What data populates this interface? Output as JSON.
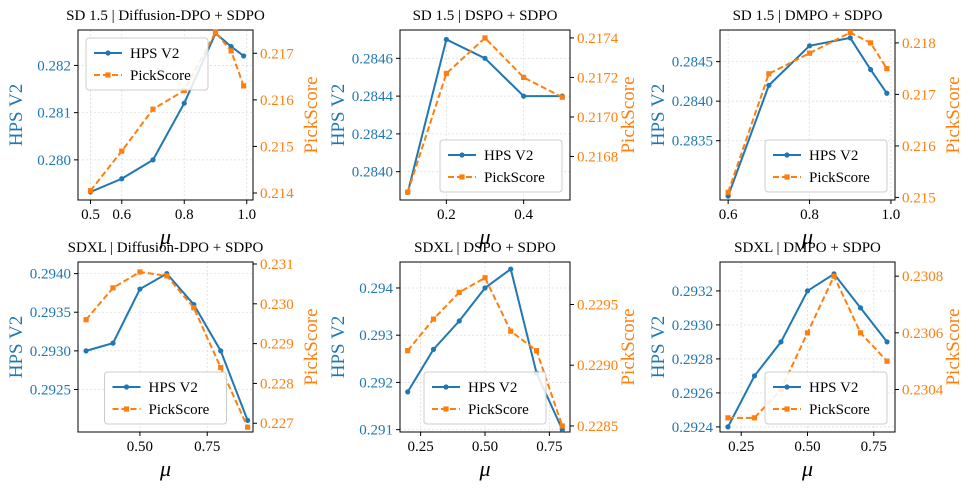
{
  "colors": {
    "hps": "#1f77b4",
    "pick": "#ff7f0e",
    "axis": "#000000",
    "grid": "#dddddd"
  },
  "chart_data": [
    {
      "type": "line",
      "title": "SD 1.5 | Diffusion-DPO + SDPO",
      "xlabel": "μ",
      "ylabel_left": "HPS V2",
      "ylabel_right": "PickScore",
      "xlim": [
        0.46,
        1.02
      ],
      "ylim_left": [
        0.27915,
        0.28275
      ],
      "ylim_right": [
        0.21385,
        0.2175
      ],
      "xticks": [
        0.5,
        0.6,
        0.8,
        1.0
      ],
      "xtick_labels": [
        "0.5",
        "0.6",
        "0.8",
        "1.0"
      ],
      "yticks_left": [
        0.28,
        0.281,
        0.282
      ],
      "yticks_left_labels": [
        "0.280",
        "0.281",
        "0.282"
      ],
      "yticks_right": [
        0.214,
        0.215,
        0.216,
        0.217
      ],
      "yticks_right_labels": [
        "0.214",
        "0.215",
        "0.216",
        "0.217"
      ],
      "legend_location": "top-left",
      "series": [
        {
          "name": "HPS V2",
          "axis": "left",
          "marker": "circle",
          "style": "solid",
          "x": [
            0.5,
            0.6,
            0.7,
            0.8,
            0.9,
            0.95,
            0.99
          ],
          "values": [
            0.27932,
            0.2796,
            0.28,
            0.2812,
            0.28268,
            0.2824,
            0.2822
          ]
        },
        {
          "name": "PickScore",
          "axis": "right",
          "marker": "square",
          "style": "dashed",
          "x": [
            0.5,
            0.6,
            0.7,
            0.8,
            0.9,
            0.95,
            0.99
          ],
          "values": [
            0.21405,
            0.2149,
            0.2158,
            0.2162,
            0.21745,
            0.21705,
            0.2163
          ]
        }
      ]
    },
    {
      "type": "line",
      "title": "SD 1.5 | DSPO + SDPO",
      "xlabel": "μ",
      "ylabel_left": "HPS V2",
      "ylabel_right": "PickScore",
      "xlim": [
        0.08,
        0.52
      ],
      "ylim_left": [
        0.28385,
        0.28475
      ],
      "ylim_right": [
        0.21658,
        0.21744
      ],
      "xticks": [
        0.2,
        0.4
      ],
      "xtick_labels": [
        "0.2",
        "0.4"
      ],
      "yticks_left": [
        0.284,
        0.2842,
        0.2844,
        0.2846
      ],
      "yticks_left_labels": [
        "0.2840",
        "0.2842",
        "0.2844",
        "0.2846"
      ],
      "yticks_right": [
        0.2168,
        0.217,
        0.2172,
        0.2174
      ],
      "yticks_right_labels": [
        "0.2168",
        "0.2170",
        "0.2172",
        "0.2174"
      ],
      "legend_location": "bottom-right",
      "series": [
        {
          "name": "HPS V2",
          "axis": "left",
          "marker": "circle",
          "style": "solid",
          "x": [
            0.1,
            0.2,
            0.3,
            0.4,
            0.5
          ],
          "values": [
            0.28389,
            0.2847,
            0.2846,
            0.2844,
            0.2844
          ]
        },
        {
          "name": "PickScore",
          "axis": "right",
          "marker": "square",
          "style": "dashed",
          "x": [
            0.1,
            0.2,
            0.3,
            0.4,
            0.5
          ],
          "values": [
            0.21662,
            0.21722,
            0.2174,
            0.2172,
            0.2171
          ]
        }
      ]
    },
    {
      "type": "line",
      "title": "SD 1.5 | DMPO + SDPO",
      "xlabel": "μ",
      "ylabel_left": "HPS V2",
      "ylabel_right": "PickScore",
      "xlim": [
        0.58,
        1.01
      ],
      "ylim_left": [
        0.28275,
        0.2849
      ],
      "ylim_right": [
        0.21495,
        0.21825
      ],
      "xticks": [
        0.6,
        0.8,
        1.0
      ],
      "xtick_labels": [
        "0.6",
        "0.8",
        "1.0"
      ],
      "yticks_left": [
        0.2835,
        0.284,
        0.2845
      ],
      "yticks_left_labels": [
        "0.2835",
        "0.2840",
        "0.2845"
      ],
      "yticks_right": [
        0.215,
        0.216,
        0.217,
        0.218
      ],
      "yticks_right_labels": [
        "0.215",
        "0.216",
        "0.217",
        "0.218"
      ],
      "legend_location": "bottom-right",
      "series": [
        {
          "name": "HPS V2",
          "axis": "left",
          "marker": "circle",
          "style": "solid",
          "x": [
            0.6,
            0.7,
            0.8,
            0.9,
            0.95,
            0.99
          ],
          "values": [
            0.2828,
            0.2842,
            0.2847,
            0.2848,
            0.2844,
            0.2841
          ]
        },
        {
          "name": "PickScore",
          "axis": "right",
          "marker": "square",
          "style": "dashed",
          "x": [
            0.6,
            0.7,
            0.8,
            0.9,
            0.95,
            0.99
          ],
          "values": [
            0.2151,
            0.2174,
            0.2178,
            0.2182,
            0.218,
            0.2175
          ]
        }
      ]
    },
    {
      "type": "line",
      "title": "SDXL  | Diffusion-DPO + SDPO",
      "xlabel": "μ",
      "ylabel_left": "HPS V2",
      "ylabel_right": "PickScore",
      "xlim": [
        0.27,
        0.92
      ],
      "ylim_left": [
        0.29195,
        0.29415
      ],
      "ylim_right": [
        0.22678,
        0.23105
      ],
      "xticks": [
        0.5,
        0.75
      ],
      "xtick_labels": [
        "0.50",
        "0.75"
      ],
      "yticks_left": [
        0.2925,
        0.293,
        0.2935,
        0.294
      ],
      "yticks_left_labels": [
        "0.2925",
        "0.2930",
        "0.2935",
        "0.2940"
      ],
      "yticks_right": [
        0.227,
        0.228,
        0.229,
        0.23,
        0.231
      ],
      "yticks_right_labels": [
        "0.227",
        "0.228",
        "0.229",
        "0.230",
        "0.231"
      ],
      "legend_location": "bottom-center",
      "series": [
        {
          "name": "HPS V2",
          "axis": "left",
          "marker": "circle",
          "style": "solid",
          "x": [
            0.3,
            0.4,
            0.5,
            0.6,
            0.7,
            0.8,
            0.9
          ],
          "values": [
            0.293,
            0.2931,
            0.2938,
            0.294,
            0.2936,
            0.293,
            0.2921
          ]
        },
        {
          "name": "PickScore",
          "axis": "right",
          "marker": "square",
          "style": "dashed",
          "x": [
            0.3,
            0.4,
            0.5,
            0.6,
            0.7,
            0.8,
            0.9
          ],
          "values": [
            0.2296,
            0.2304,
            0.2308,
            0.2307,
            0.2299,
            0.2284,
            0.2269
          ]
        }
      ]
    },
    {
      "type": "line",
      "title": "SDXL  | DSPO + SDPO",
      "xlabel": "μ",
      "ylabel_left": "HPS V2",
      "ylabel_right": "PickScore",
      "xlim": [
        0.17,
        0.83
      ],
      "ylim_left": [
        0.29095,
        0.29455
      ],
      "ylim_right": [
        0.22845,
        0.22985
      ],
      "xticks": [
        0.25,
        0.5,
        0.75
      ],
      "xtick_labels": [
        "0.25",
        "0.50",
        "0.75"
      ],
      "yticks_left": [
        0.291,
        0.292,
        0.293,
        0.294
      ],
      "yticks_left_labels": [
        "0.291",
        "0.292",
        "0.293",
        "0.294"
      ],
      "yticks_right": [
        0.2285,
        0.229,
        0.2295
      ],
      "yticks_right_labels": [
        "0.2285",
        "0.2290",
        "0.2295"
      ],
      "legend_location": "bottom-center",
      "series": [
        {
          "name": "HPS V2",
          "axis": "left",
          "marker": "circle",
          "style": "solid",
          "x": [
            0.2,
            0.3,
            0.4,
            0.5,
            0.6,
            0.7,
            0.8
          ],
          "values": [
            0.2918,
            0.2927,
            0.2933,
            0.294,
            0.2944,
            0.2922,
            0.291
          ]
        },
        {
          "name": "PickScore",
          "axis": "right",
          "marker": "square",
          "style": "dashed",
          "x": [
            0.2,
            0.3,
            0.4,
            0.5,
            0.6,
            0.7,
            0.8
          ],
          "values": [
            0.22912,
            0.22938,
            0.2296,
            0.22972,
            0.22928,
            0.22912,
            0.2285
          ]
        }
      ]
    },
    {
      "type": "line",
      "title": "SDXL  | DMPO + SDPO",
      "xlabel": "μ",
      "ylabel_left": "HPS V2",
      "ylabel_right": "PickScore",
      "xlim": [
        0.17,
        0.83
      ],
      "ylim_left": [
        0.29237,
        0.29337
      ],
      "ylim_right": [
        0.23025,
        0.23085
      ],
      "xticks": [
        0.25,
        0.5,
        0.75
      ],
      "xtick_labels": [
        "0.25",
        "0.50",
        "0.75"
      ],
      "yticks_left": [
        0.2924,
        0.2926,
        0.2928,
        0.293,
        0.2932
      ],
      "yticks_left_labels": [
        "0.2924",
        "0.2926",
        "0.2928",
        "0.2930",
        "0.2932"
      ],
      "yticks_right": [
        0.2304,
        0.2306,
        0.2308
      ],
      "yticks_right_labels": [
        "0.2304",
        "0.2306",
        "0.2308"
      ],
      "legend_location": "bottom-right",
      "series": [
        {
          "name": "HPS V2",
          "axis": "left",
          "marker": "circle",
          "style": "solid",
          "x": [
            0.2,
            0.3,
            0.4,
            0.5,
            0.6,
            0.7,
            0.8
          ],
          "values": [
            0.2924,
            0.2927,
            0.2929,
            0.2932,
            0.2933,
            0.2931,
            0.2929
          ]
        },
        {
          "name": "PickScore",
          "axis": "right",
          "marker": "square",
          "style": "dashed",
          "x": [
            0.2,
            0.3,
            0.4,
            0.5,
            0.6,
            0.7,
            0.8
          ],
          "values": [
            0.2303,
            0.2303,
            0.2304,
            0.2306,
            0.2308,
            0.2306,
            0.2305
          ]
        }
      ]
    }
  ]
}
